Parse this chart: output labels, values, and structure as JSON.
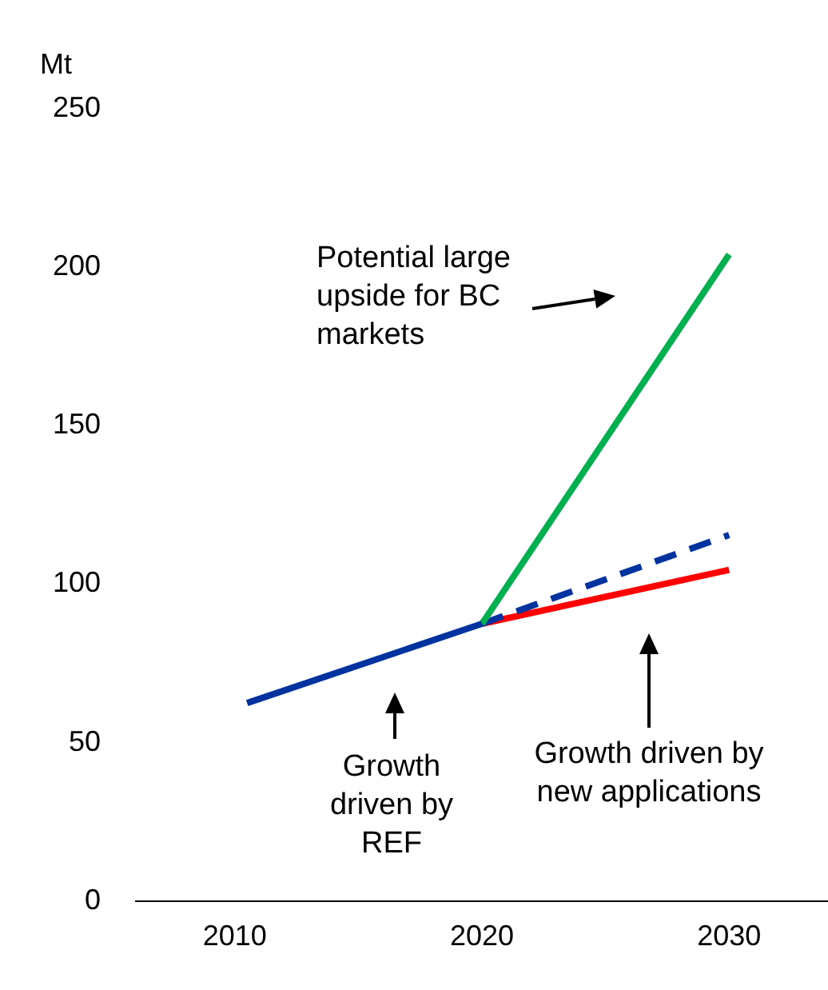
{
  "chart_data": {
    "type": "line",
    "ylabel": "Mt",
    "xlim": [
      2006,
      2034
    ],
    "xticks": [
      2010,
      2020,
      2030
    ],
    "ylim": [
      0,
      250
    ],
    "yticks": [
      0,
      50,
      100,
      150,
      200,
      250
    ],
    "grid": false,
    "legend": false,
    "marker": "none",
    "series": [
      {
        "color": "#0033a0",
        "x": [
          2010.5,
          2020
        ],
        "values": [
          62.5,
          87.5
        ]
      },
      {
        "color": "#00b050",
        "x": [
          2020,
          2030
        ],
        "values": [
          87.5,
          204
        ]
      },
      {
        "color": "#0033a0",
        "x": [
          2020,
          2030
        ],
        "values": [
          87.5,
          115.5
        ],
        "line_style": "dashed"
      },
      {
        "color": "#ff0000",
        "x": [
          2020,
          2030
        ],
        "values": [
          87.5,
          104.5
        ]
      }
    ],
    "annotations": [
      "Potential large upside for BC markets",
      "Growth driven by REF",
      "Growth driven by new applications"
    ]
  }
}
